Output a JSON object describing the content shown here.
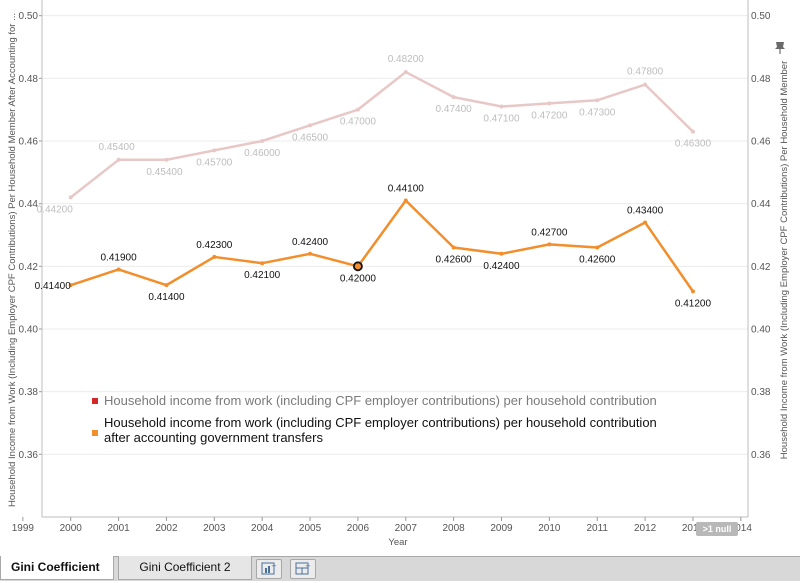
{
  "chart_data": {
    "type": "line",
    "xlabel": "Year",
    "ylabel_left": "Household Income from Work (Including Employer CPF Contributions) Per Household Member After Accounting for ...",
    "ylabel_right": "Household Income from Work (Including Employer CPF Contributions) Per Household Member",
    "x_ticks": [
      "1999",
      "2000",
      "2001",
      "2002",
      "2003",
      "2004",
      "2005",
      "2006",
      "2007",
      "2008",
      "2009",
      "2010",
      "2011",
      "2012",
      "2013",
      "2014"
    ],
    "xlim": [
      1999,
      2014
    ],
    "ylim": [
      0.34,
      0.5
    ],
    "y_ticks": [
      "0.36",
      "0.38",
      "0.40",
      "0.42",
      "0.44",
      "0.46",
      "0.48",
      "0.50"
    ],
    "grid": true,
    "legend_position": "bottom-left",
    "series": [
      {
        "name": "Household income from work (including CPF employer contributions) per household contribution",
        "color": "#e8c8c6",
        "label_color": "#bdbdbd",
        "x": [
          2000,
          2001,
          2002,
          2003,
          2004,
          2005,
          2006,
          2007,
          2008,
          2009,
          2010,
          2011,
          2012,
          2013
        ],
        "values": [
          0.442,
          0.454,
          0.454,
          0.457,
          0.46,
          0.465,
          0.47,
          0.482,
          0.474,
          0.471,
          0.472,
          0.473,
          0.478,
          0.463
        ],
        "labels": [
          "0.44200",
          "0.45400",
          "0.45400",
          "0.45700",
          "0.46000",
          "0.46500",
          "0.47000",
          "0.48200",
          "0.47400",
          "0.47100",
          "0.47200",
          "0.47300",
          "0.47800",
          "0.46300"
        ]
      },
      {
        "name": "Household income from work (including CPF employer contributions) per household contribution after accounting government transfers",
        "color": "#f28e2b",
        "label_color": "#111111",
        "x": [
          2000,
          2001,
          2002,
          2003,
          2004,
          2005,
          2006,
          2007,
          2008,
          2009,
          2010,
          2011,
          2012,
          2013
        ],
        "values": [
          0.414,
          0.419,
          0.414,
          0.423,
          0.421,
          0.424,
          0.42,
          0.441,
          0.426,
          0.424,
          0.427,
          0.426,
          0.434,
          0.412
        ],
        "labels": [
          "0.41400",
          "0.41900",
          "0.41400",
          "0.42300",
          "0.42100",
          "0.42400",
          "0.42000",
          "0.44100",
          "0.42600",
          "0.42400",
          "0.42700",
          "0.42600",
          "0.43400",
          "0.41200"
        ],
        "highlight_x": 2006
      }
    ],
    "legend": [
      {
        "label": "Household income from work (including CPF employer contributions) per household contribution",
        "color": "#d62728",
        "text_color": "#7a7a7a"
      },
      {
        "label_lines": [
          "Household income from work (including CPF employer contributions) per household contribution",
          "after accounting government transfers"
        ],
        "color": "#f28e2b",
        "text_color": "#111111"
      }
    ],
    "null_indicator": ">1 null"
  },
  "tabs": [
    {
      "label": "Gini Coefficient",
      "active": true
    },
    {
      "label": "Gini Coefficient 2",
      "active": false
    }
  ],
  "icons": [
    "new-worksheet-icon",
    "new-dashboard-icon",
    "pin-icon"
  ]
}
